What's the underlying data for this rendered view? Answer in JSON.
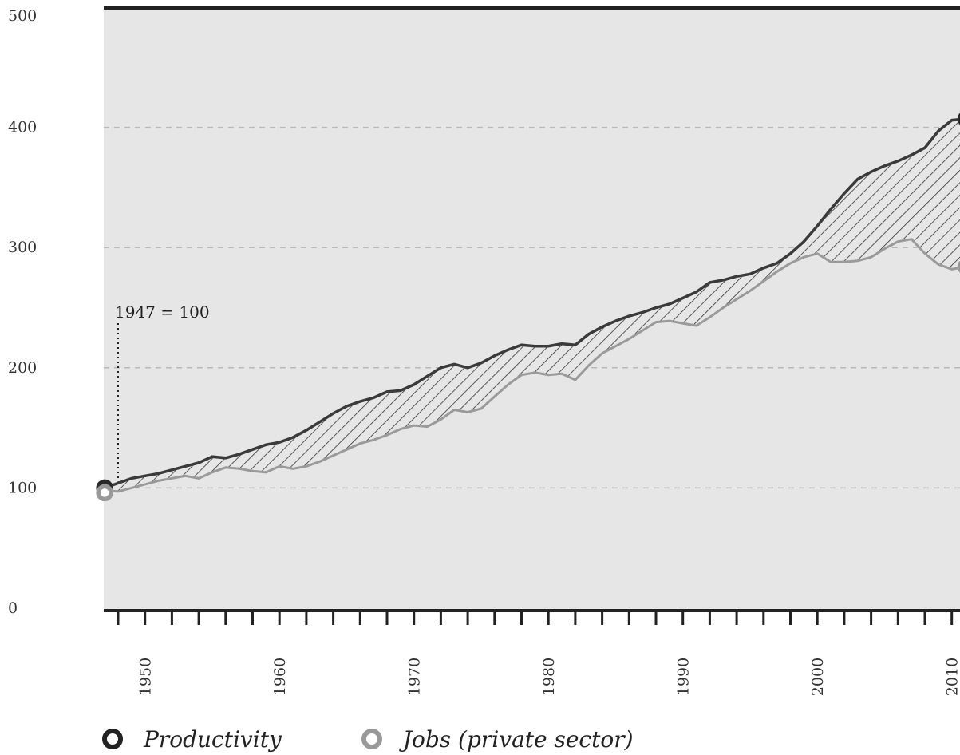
{
  "chart_data": {
    "type": "line",
    "title": "",
    "xlabel": "",
    "ylabel": "",
    "ylim": [
      0,
      500
    ],
    "xlim": [
      1947,
      2011
    ],
    "y_ticks": [
      "0",
      "100",
      "200",
      "300",
      "400",
      "500"
    ],
    "x_ticks": [
      "1950",
      "1960",
      "1970",
      "1980",
      "1990",
      "2000",
      "2010"
    ],
    "grid": "horizontal dashed",
    "legend_position": "bottom-left",
    "annotation": "1947 = 100",
    "fill_between": "hatched",
    "colors": {
      "productivity": "#3a3a3a",
      "jobs": "#9a9a9a",
      "plot_background": "#e6e6e7",
      "hatch": "#333333"
    },
    "x": [
      1947,
      1948,
      1949,
      1950,
      1951,
      1952,
      1953,
      1954,
      1955,
      1956,
      1957,
      1958,
      1959,
      1960,
      1961,
      1962,
      1963,
      1964,
      1965,
      1966,
      1967,
      1968,
      1969,
      1970,
      1971,
      1972,
      1973,
      1974,
      1975,
      1976,
      1977,
      1978,
      1979,
      1980,
      1981,
      1982,
      1983,
      1984,
      1985,
      1986,
      1987,
      1988,
      1989,
      1990,
      1991,
      1992,
      1993,
      1994,
      1995,
      1996,
      1997,
      1998,
      1999,
      2000,
      2001,
      2002,
      2003,
      2004,
      2005,
      2006,
      2007,
      2008,
      2009,
      2010,
      2011
    ],
    "series": [
      {
        "name": "Productivity",
        "values": [
          100,
          104,
          108,
          110,
          112,
          115,
          118,
          121,
          126,
          125,
          128,
          132,
          136,
          138,
          142,
          148,
          155,
          162,
          168,
          172,
          175,
          180,
          181,
          186,
          193,
          200,
          203,
          200,
          204,
          210,
          215,
          219,
          218,
          218,
          220,
          219,
          228,
          234,
          239,
          243,
          246,
          250,
          253,
          258,
          263,
          271,
          273,
          276,
          278,
          283,
          287,
          295,
          305,
          318,
          332,
          345,
          357,
          363,
          368,
          372,
          377,
          383,
          397,
          406,
          407
        ]
      },
      {
        "name": "Jobs (private sector)",
        "values": [
          98,
          97,
          100,
          103,
          106,
          108,
          110,
          108,
          113,
          117,
          116,
          114,
          113,
          118,
          116,
          118,
          122,
          127,
          132,
          137,
          140,
          144,
          149,
          152,
          151,
          157,
          165,
          163,
          166,
          176,
          186,
          194,
          196,
          194,
          195,
          190,
          202,
          212,
          218,
          224,
          231,
          238,
          239,
          237,
          235,
          242,
          250,
          257,
          264,
          272,
          280,
          287,
          292,
          295,
          288,
          288,
          289,
          292,
          299,
          305,
          307,
          295,
          286,
          282,
          284
        ]
      }
    ]
  },
  "legend": {
    "productivity_label": "Productivity",
    "jobs_label": "Jobs (private sector)"
  }
}
